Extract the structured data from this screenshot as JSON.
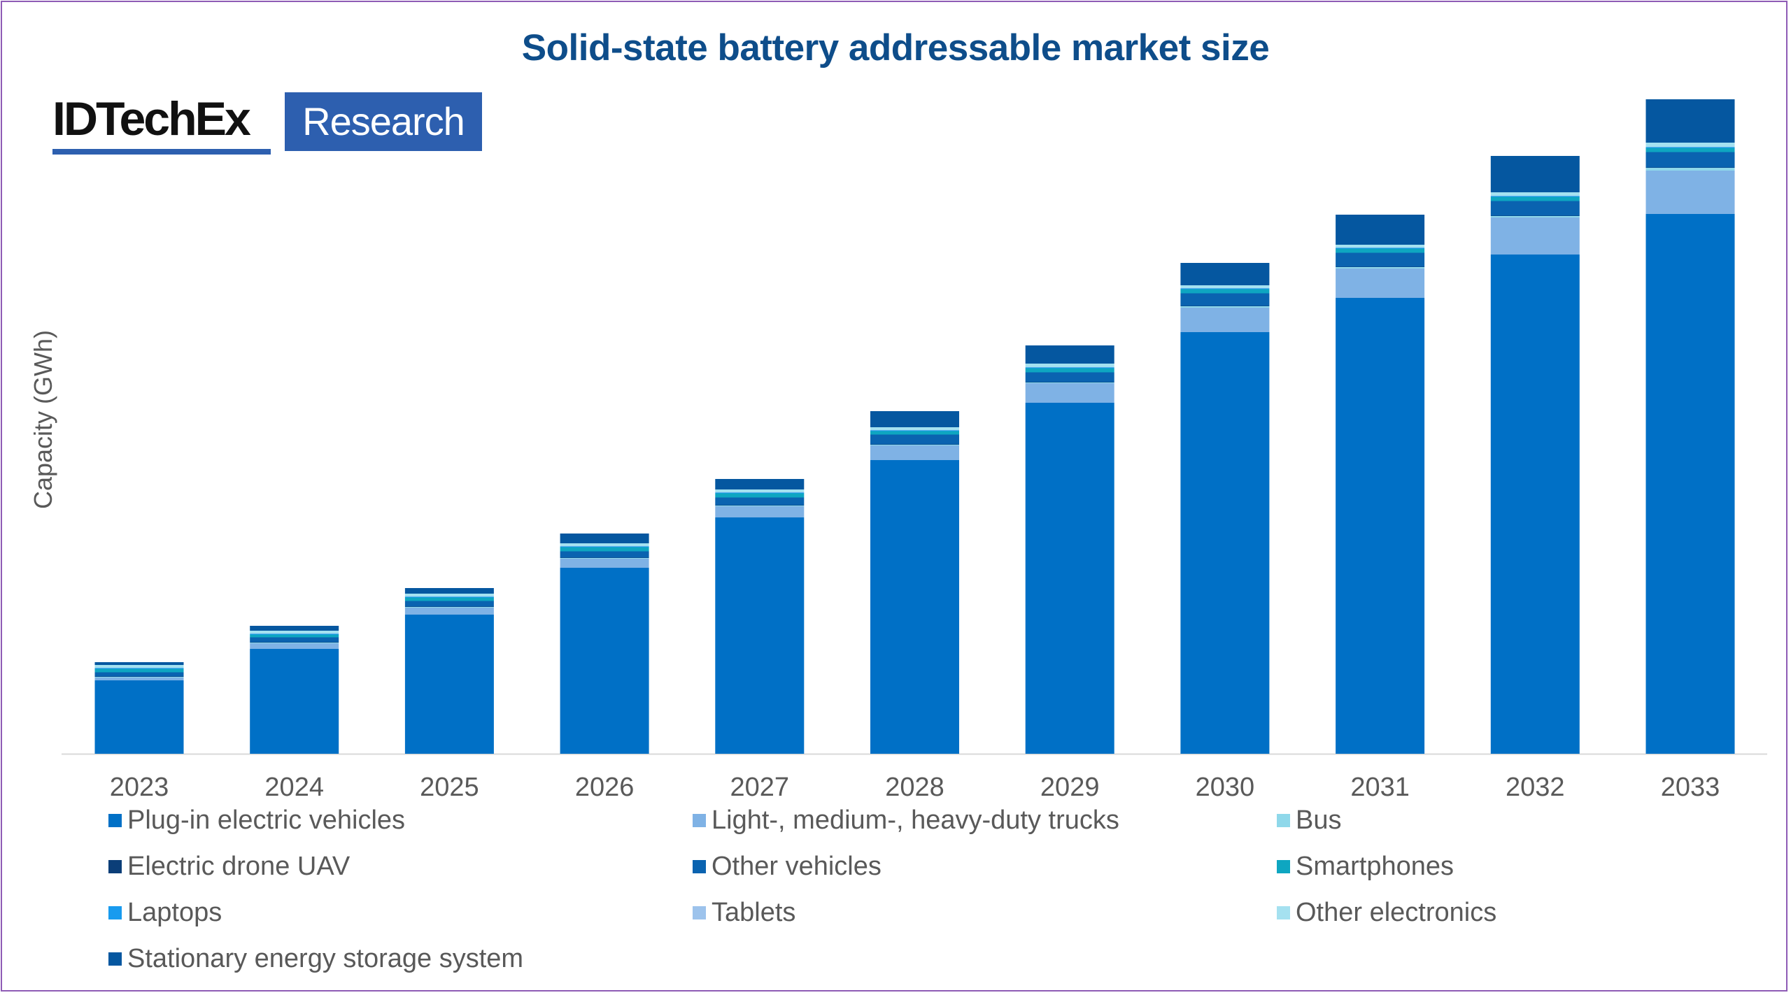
{
  "logo": {
    "brand": "IDTechEx",
    "tag": "Research"
  },
  "chart_data": {
    "type": "bar",
    "stacked": true,
    "title": "Solid-state battery addressable market size",
    "xlabel": "",
    "ylabel": "Capacity (GWh)",
    "y_tick_labels_shown": false,
    "grid": false,
    "legend_position": "bottom",
    "categories": [
      "2023",
      "2024",
      "2025",
      "2026",
      "2027",
      "2028",
      "2029",
      "2030",
      "2031",
      "2032",
      "2033"
    ],
    "value_units_note": "relative units estimated from bar heights (no y-axis scale shown)",
    "ylim": [
      0,
      100
    ],
    "series": [
      {
        "name": "Plug-in electric vehicles",
        "color": "#0070c6",
        "values": [
          10.5,
          15.0,
          19.9,
          26.6,
          33.8,
          42.0,
          50.2,
          60.3,
          65.2,
          71.4,
          77.2
        ]
      },
      {
        "name": "Light-, medium-, heavy-duty trucks",
        "color": "#7fb2e5",
        "values": [
          0.4,
          0.8,
          1.0,
          1.3,
          1.6,
          2.1,
          2.8,
          3.5,
          4.2,
          5.3,
          6.2
        ]
      },
      {
        "name": "Bus",
        "color": "#8fd8ea",
        "values": [
          0.1,
          0.1,
          0.1,
          0.1,
          0.1,
          0.1,
          0.1,
          0.2,
          0.2,
          0.2,
          0.4
        ]
      },
      {
        "name": "Electric drone UAV",
        "color": "#0b3e78",
        "values": [
          0.05,
          0.05,
          0.05,
          0.05,
          0.05,
          0.05,
          0.05,
          0.05,
          0.05,
          0.05,
          0.05
        ]
      },
      {
        "name": "Other vehicles",
        "color": "#0a63b0",
        "values": [
          0.6,
          0.7,
          0.8,
          0.9,
          1.1,
          1.4,
          1.4,
          1.8,
          2.0,
          2.1,
          2.2
        ]
      },
      {
        "name": "Smartphones",
        "color": "#0ea6c1",
        "values": [
          0.5,
          0.4,
          0.5,
          0.6,
          0.6,
          0.5,
          0.6,
          0.6,
          0.6,
          0.6,
          0.6
        ]
      },
      {
        "name": "Laptops",
        "color": "#189bef",
        "values": [
          0.1,
          0.1,
          0.1,
          0.1,
          0.1,
          0.1,
          0.1,
          0.1,
          0.1,
          0.1,
          0.1
        ]
      },
      {
        "name": "Tablets",
        "color": "#9dc3ec",
        "values": [
          0.05,
          0.05,
          0.05,
          0.05,
          0.05,
          0.05,
          0.05,
          0.05,
          0.05,
          0.05,
          0.05
        ]
      },
      {
        "name": "Other electronics",
        "color": "#a5e1f0",
        "values": [
          0.4,
          0.4,
          0.4,
          0.4,
          0.4,
          0.4,
          0.5,
          0.4,
          0.4,
          0.5,
          0.6
        ]
      },
      {
        "name": "Stationary energy storage system",
        "color": "#0557a0",
        "values": [
          0.4,
          0.7,
          0.8,
          1.4,
          1.5,
          2.3,
          2.6,
          3.2,
          4.3,
          5.2,
          6.2
        ]
      }
    ]
  }
}
